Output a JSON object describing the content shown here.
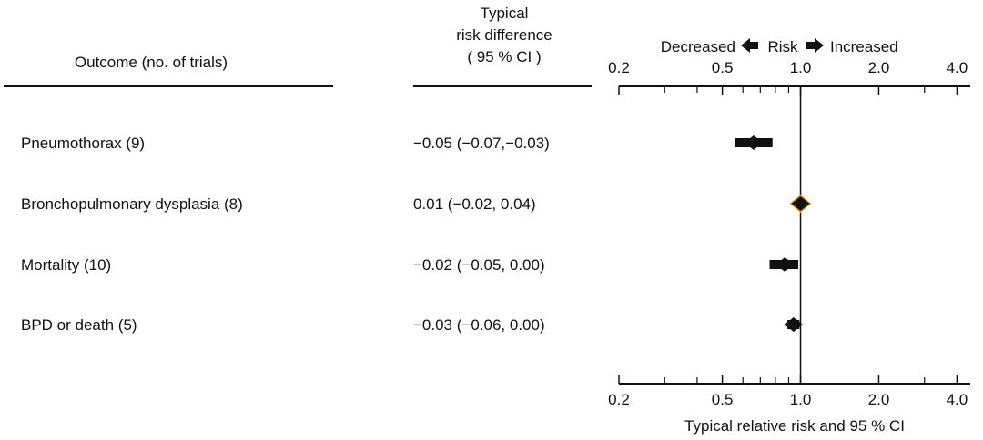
{
  "headers": {
    "outcome": "Outcome (no. of trials)",
    "risk_diff": [
      "Typical",
      "risk difference",
      "( 95 % CI )"
    ],
    "decreased": "Decreased",
    "risk": "Risk",
    "increased": "Increased"
  },
  "rows": [
    {
      "outcome": "Pneumothorax  (9)",
      "risk_diff": "−0.05 (−0.07,−0.03)"
    },
    {
      "outcome": "Bronchopulmonary dysplasia (8)",
      "risk_diff": "0.01 (−0.02, 0.04)"
    },
    {
      "outcome": "Mortality  (10)",
      "risk_diff": "−0.02 (−0.05, 0.00)"
    },
    {
      "outcome": "BPD or death  (5)",
      "risk_diff": "−0.03 (−0.06, 0.00)"
    }
  ],
  "chart_data": {
    "type": "scatter",
    "subtype": "forest-plot",
    "xlabel": "Typical relative risk and 95 % CI",
    "x_scale": "log",
    "xlim": [
      0.2,
      4.5
    ],
    "tick_labels": [
      "0.2",
      "0.5",
      "1.0",
      "2.0",
      "4.0"
    ],
    "tick_values": [
      0.2,
      0.5,
      1.0,
      2.0,
      4.0
    ],
    "minor_ticks": [
      0.3,
      0.4,
      0.6,
      0.7,
      0.8,
      0.9,
      3.0
    ],
    "reference_line": 1.0,
    "series": [
      {
        "points": [
          {
            "category": "Pneumothorax",
            "rr": 0.66,
            "ci": [
              0.56,
              0.78
            ]
          },
          {
            "category": "Bronchopulmonary dysplasia",
            "rr": 1.0,
            "ci": [
              0.96,
              1.04
            ]
          },
          {
            "category": "Mortality",
            "rr": 0.87,
            "ci": [
              0.76,
              0.98
            ]
          },
          {
            "category": "BPD or death",
            "rr": 0.94,
            "ci": [
              0.89,
              0.99
            ]
          }
        ]
      }
    ],
    "colors": {
      "ink": "#111111",
      "highlight": "#e8a317"
    }
  }
}
